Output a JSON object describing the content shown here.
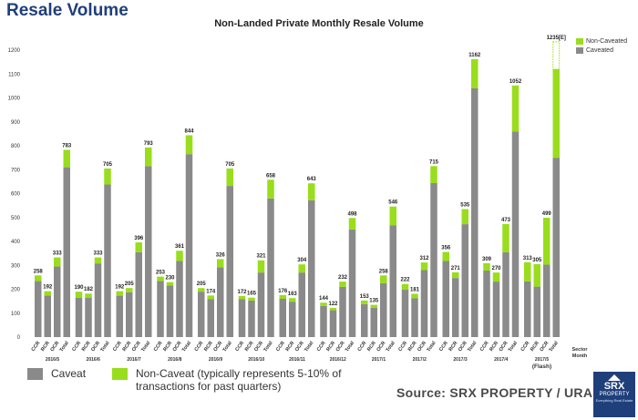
{
  "header": {
    "title": "Resale Volume"
  },
  "chart_data": {
    "type": "bar",
    "stacked": true,
    "title": "Non-Landed Private Monthly Resale Volume",
    "xlabel": "Sector\nMonth",
    "ylabel": "",
    "ylim": [
      0,
      1200
    ],
    "yticks": [
      0,
      100,
      200,
      300,
      400,
      500,
      600,
      700,
      800,
      900,
      1000,
      1100,
      1200
    ],
    "grid": false,
    "legend_position": "top-right",
    "sectors": [
      "CCR",
      "RCR",
      "OCR",
      "Total"
    ],
    "months": [
      "2016/5",
      "2016/6",
      "2016/7",
      "2016/8",
      "2016/9",
      "2016/10",
      "2016/11",
      "2016/12",
      "2017/1",
      "2017/2",
      "2017/3",
      "2017/4",
      "2017/5\n(Flash)"
    ],
    "series": [
      {
        "name": "Caveated",
        "color": "#8a8a8a",
        "values": [
          [
            234,
            174,
            295,
            710
          ],
          [
            165,
            165,
            308,
            638
          ],
          [
            173,
            187,
            355,
            715
          ],
          [
            235,
            216,
            318,
            765
          ],
          [
            190,
            158,
            292,
            632
          ],
          [
            158,
            153,
            270,
            580
          ],
          [
            160,
            148,
            270,
            572
          ],
          [
            130,
            112,
            210,
            450
          ],
          [
            138,
            123,
            225,
            468
          ],
          [
            198,
            162,
            280,
            644
          ],
          [
            318,
            247,
            472,
            1040
          ],
          [
            278,
            232,
            355,
            860
          ],
          [
            233,
            211,
            303,
            750
          ]
        ]
      },
      {
        "name": "Non-Caveated",
        "color": "#99dd1c",
        "values": [
          [
            24,
            18,
            38,
            73
          ],
          [
            25,
            17,
            25,
            67
          ],
          [
            19,
            18,
            41,
            78
          ],
          [
            18,
            14,
            43,
            79
          ],
          [
            15,
            16,
            34,
            73
          ],
          [
            14,
            12,
            51,
            78
          ],
          [
            16,
            15,
            34,
            71
          ],
          [
            14,
            10,
            22,
            48
          ],
          [
            15,
            12,
            33,
            78
          ],
          [
            24,
            19,
            32,
            71
          ],
          [
            38,
            24,
            63,
            122
          ],
          [
            31,
            38,
            118,
            192
          ],
          [
            80,
            94,
            196,
            370
          ]
        ]
      }
    ],
    "value_labels": [
      [
        "258",
        "192",
        "333",
        "783"
      ],
      [
        "190",
        "182",
        "333",
        "705"
      ],
      [
        "192",
        "205",
        "396",
        "793"
      ],
      [
        "253",
        "230",
        "361",
        "844"
      ],
      [
        "205",
        "174",
        "326",
        "705"
      ],
      [
        "172",
        "165",
        "321",
        "658"
      ],
      [
        "176",
        "163",
        "304",
        "643"
      ],
      [
        "144",
        "122",
        "232",
        "498"
      ],
      [
        "153",
        "135",
        "258",
        "546"
      ],
      [
        "222",
        "181",
        "312",
        "715"
      ],
      [
        "356",
        "271",
        "535",
        "1162"
      ],
      [
        "309",
        "270",
        "473",
        "1052"
      ],
      [
        "313",
        "305",
        "499",
        "1235[E]"
      ]
    ],
    "estimate": {
      "label": "1235[E]",
      "total": 1235
    }
  },
  "legend_top": [
    {
      "label": "Non-Caveated",
      "color": "#99dd1c"
    },
    {
      "label": "Caveated",
      "color": "#8a8a8a"
    }
  ],
  "bottom_legend": {
    "caveat_label": "Caveat",
    "caveat_color": "#8a8a8a",
    "noncaveat_line1": "Non-Caveat (typically represents 5-10% of",
    "noncaveat_line2": "transactions for past quarters)",
    "noncaveat_color": "#99dd1c"
  },
  "source": "Source:  SRX PROPERTY / URA",
  "logo": {
    "line1": "SRX",
    "line2": "PROPERTY",
    "line3": "Everything Real Estate"
  }
}
